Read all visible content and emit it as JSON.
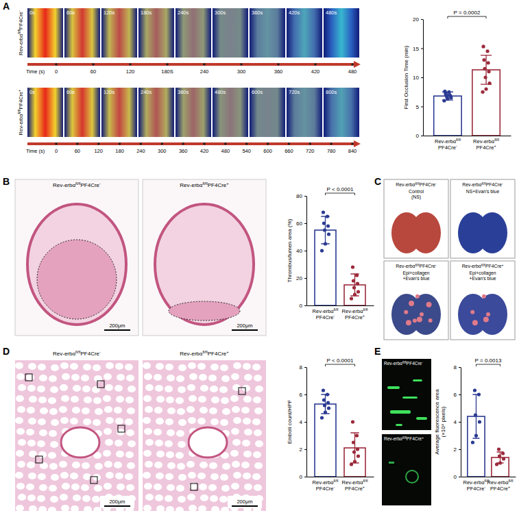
{
  "figure": {
    "panel_labels": [
      "A",
      "B",
      "C",
      "D",
      "E"
    ],
    "a_rows": [
      {
        "label": "Rev-erbαfl/flPF4Cre-",
        "frames": [
          "0s",
          "60s",
          "120s",
          "180s",
          "240s",
          "300s",
          "360s",
          "420s",
          "480s"
        ],
        "time_label": "Time (s)",
        "time_ticks": [
          "0",
          "60",
          "120",
          "180S",
          "240",
          "300",
          "360",
          "420",
          "480"
        ]
      },
      {
        "label": "Rev-erbαfl/flPF4Cre+",
        "frames": [
          "0s",
          "60s",
          "120s",
          "240s",
          "360s",
          "480s",
          "600s",
          "720s",
          "800s"
        ],
        "time_label": "Time (s)",
        "time_ticks": [
          "0",
          "60",
          "120",
          "180",
          "240",
          "300",
          "360",
          "420",
          "480",
          "540",
          "600",
          "660",
          "720",
          "780",
          "840"
        ]
      }
    ],
    "b_images": [
      {
        "label": "Rev-erbαfl/flPF4Cre-",
        "scale_bar": "200μm"
      },
      {
        "label": "Rev-erbαfl/flPF4Cre+",
        "scale_bar": "200μm"
      }
    ],
    "c_images": [
      {
        "label": "Rev-erbαfl/flPF4Cre-",
        "treatment": "Control\n(NS)"
      },
      {
        "label": "Rev-erbαfl/flPF4Cre-",
        "treatment": "NS+Evan's blue"
      },
      {
        "label": "Rev-erbαfl/flPF4Cre-",
        "treatment": "Epi+collagen\n+Evan's blue"
      },
      {
        "label": "Rev-erbαfl/flPF4Cre+",
        "treatment": "Epi+collagen\n+Evan's blue"
      }
    ],
    "d_images": [
      {
        "label": "Rev-erbαfl/flPF4Cre-",
        "scale_bar": "200μm"
      },
      {
        "label": "Rev-erbαfl/flPF4Cre+",
        "scale_bar": "200μm"
      }
    ],
    "e_images": [
      {
        "label": "Rev-erbαfl/flPF4Cre-"
      },
      {
        "label": "Rev-erbαfl/flPF4Cre+"
      }
    ]
  },
  "chart_data": [
    {
      "type": "bar",
      "y_label": "First Occlusion Time (min)",
      "categories": [
        "Rev-erbαfl/fl\nPF4Cre-",
        "Rev-erbαfl/fl\nPF4Cre+"
      ],
      "values": [
        6.8,
        11.3
      ],
      "errors": [
        0.7,
        2.5
      ],
      "points": [
        [
          6.0,
          6.3,
          6.5,
          6.6,
          6.8,
          6.9,
          7.0,
          7.2,
          7.5,
          7.6
        ],
        [
          7.5,
          8.0,
          9.0,
          10.0,
          11.0,
          11.5,
          12.5,
          13.0,
          14.5,
          15.3
        ]
      ],
      "colors": [
        "#2b3a92",
        "#9c2a3c"
      ],
      "ylim": [
        0,
        20
      ],
      "yticks": [
        0,
        5,
        10,
        15,
        20
      ],
      "annotation": "P = 0.0002"
    },
    {
      "type": "bar",
      "y_label": "Thrombus/lumen area (%)",
      "categories": [
        "Rev-erbαfl/fl\nPF4Cre-",
        "Rev-erbαfl/fl\nPF4Cre+"
      ],
      "values": [
        55,
        15
      ],
      "errors": [
        10,
        8
      ],
      "points": [
        [
          40,
          45,
          52,
          55,
          58,
          60,
          65,
          68
        ],
        [
          5,
          8,
          10,
          13,
          16,
          18,
          22,
          28
        ]
      ],
      "colors": [
        "#2b3a92",
        "#9c2a3c"
      ],
      "ylim": [
        0,
        80
      ],
      "yticks": [
        0,
        20,
        40,
        60,
        80
      ],
      "annotation": "P < 0.0001"
    },
    {
      "type": "bar",
      "y_label": "Emboli count/HPF",
      "categories": [
        "Rev-erbαfl/fl\nPF4Cre-",
        "Rev-erbαfl/fl\nPF4Cre+"
      ],
      "values": [
        5.3,
        2.1
      ],
      "errors": [
        0.7,
        1.1
      ],
      "points": [
        [
          4.3,
          4.7,
          5.0,
          5.2,
          5.4,
          5.6,
          6.0,
          6.3
        ],
        [
          0.9,
          1.1,
          1.5,
          1.8,
          2.0,
          2.5,
          3.0,
          4.0
        ]
      ],
      "colors": [
        "#2b3a92",
        "#9c2a3c"
      ],
      "ylim": [
        0,
        8
      ],
      "yticks": [
        0,
        2,
        4,
        6,
        8
      ],
      "annotation": "P < 0.0001"
    },
    {
      "type": "bar",
      "y_label": "Average fluorescence area\n(×10⁴ pixels)",
      "categories": [
        "Rev-erbαfl/fl\nPF4Cre-",
        "Rev-erbαfl/fl\nPF4Cre+"
      ],
      "values": [
        4.4,
        1.4
      ],
      "errors": [
        1.6,
        0.4
      ],
      "points": [
        [
          2.5,
          3.0,
          4.0,
          4.5,
          6.0,
          6.3
        ],
        [
          0.9,
          1.0,
          1.3,
          1.5,
          1.7,
          2.0
        ]
      ],
      "colors": [
        "#2b3a92",
        "#9c2a3c"
      ],
      "ylim": [
        0,
        8
      ],
      "yticks": [
        0,
        2,
        4,
        6,
        8
      ],
      "annotation": "P = 0.0013"
    }
  ]
}
